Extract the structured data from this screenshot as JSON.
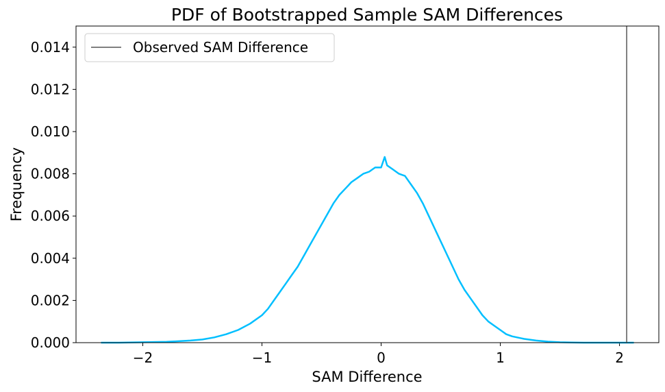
{
  "chart_data": {
    "type": "line",
    "title": "PDF of Bootstrapped Sample SAM Differences",
    "xlabel": "SAM Difference",
    "ylabel": "Frequency",
    "xlim": [
      -2.56,
      2.33
    ],
    "ylim": [
      0,
      0.015
    ],
    "xticks": [
      -2,
      -1,
      0,
      1,
      2
    ],
    "xtick_labels": [
      "−2",
      "−1",
      "0",
      "1",
      "2"
    ],
    "yticks": [
      0,
      0.002,
      0.004,
      0.006,
      0.008,
      0.01,
      0.012,
      0.014
    ],
    "ytick_labels": [
      "0.000",
      "0.002",
      "0.004",
      "0.006",
      "0.008",
      "0.010",
      "0.012",
      "0.014"
    ],
    "grid": false,
    "legend_position": "top-left",
    "series": [
      {
        "name": "",
        "color": "#00bfff",
        "x": [
          -2.35,
          -2.2,
          -2.0,
          -1.8,
          -1.6,
          -1.5,
          -1.4,
          -1.3,
          -1.2,
          -1.1,
          -1.0,
          -0.95,
          -0.9,
          -0.85,
          -0.8,
          -0.75,
          -0.7,
          -0.65,
          -0.6,
          -0.55,
          -0.5,
          -0.45,
          -0.4,
          -0.35,
          -0.3,
          -0.25,
          -0.2,
          -0.15,
          -0.1,
          -0.05,
          0.0,
          0.03,
          0.05,
          0.1,
          0.15,
          0.2,
          0.25,
          0.3,
          0.35,
          0.4,
          0.45,
          0.5,
          0.55,
          0.6,
          0.65,
          0.7,
          0.75,
          0.8,
          0.85,
          0.9,
          0.95,
          1.0,
          1.05,
          1.1,
          1.2,
          1.3,
          1.4,
          1.5,
          1.6,
          1.7,
          1.8,
          2.0,
          2.12
        ],
        "values": [
          0.0,
          0.0,
          2e-05,
          4e-05,
          0.0001,
          0.00015,
          0.00025,
          0.0004,
          0.0006,
          0.0009,
          0.0013,
          0.0016,
          0.002,
          0.0024,
          0.0028,
          0.0032,
          0.0036,
          0.0041,
          0.0046,
          0.0051,
          0.0056,
          0.0061,
          0.0066,
          0.007,
          0.0073,
          0.0076,
          0.0078,
          0.008,
          0.0081,
          0.0083,
          0.0083,
          0.0088,
          0.0084,
          0.0082,
          0.008,
          0.0079,
          0.0075,
          0.0071,
          0.0066,
          0.006,
          0.0054,
          0.0048,
          0.0042,
          0.0036,
          0.003,
          0.0025,
          0.0021,
          0.0017,
          0.0013,
          0.001,
          0.0008,
          0.0006,
          0.0004,
          0.0003,
          0.00018,
          0.0001,
          5e-05,
          2e-05,
          1e-05,
          0.0,
          0.0,
          0.0,
          0.0
        ]
      }
    ],
    "vlines": [
      {
        "name": "Observed SAM Difference",
        "x": 2.06,
        "color": "#808080"
      }
    ]
  }
}
